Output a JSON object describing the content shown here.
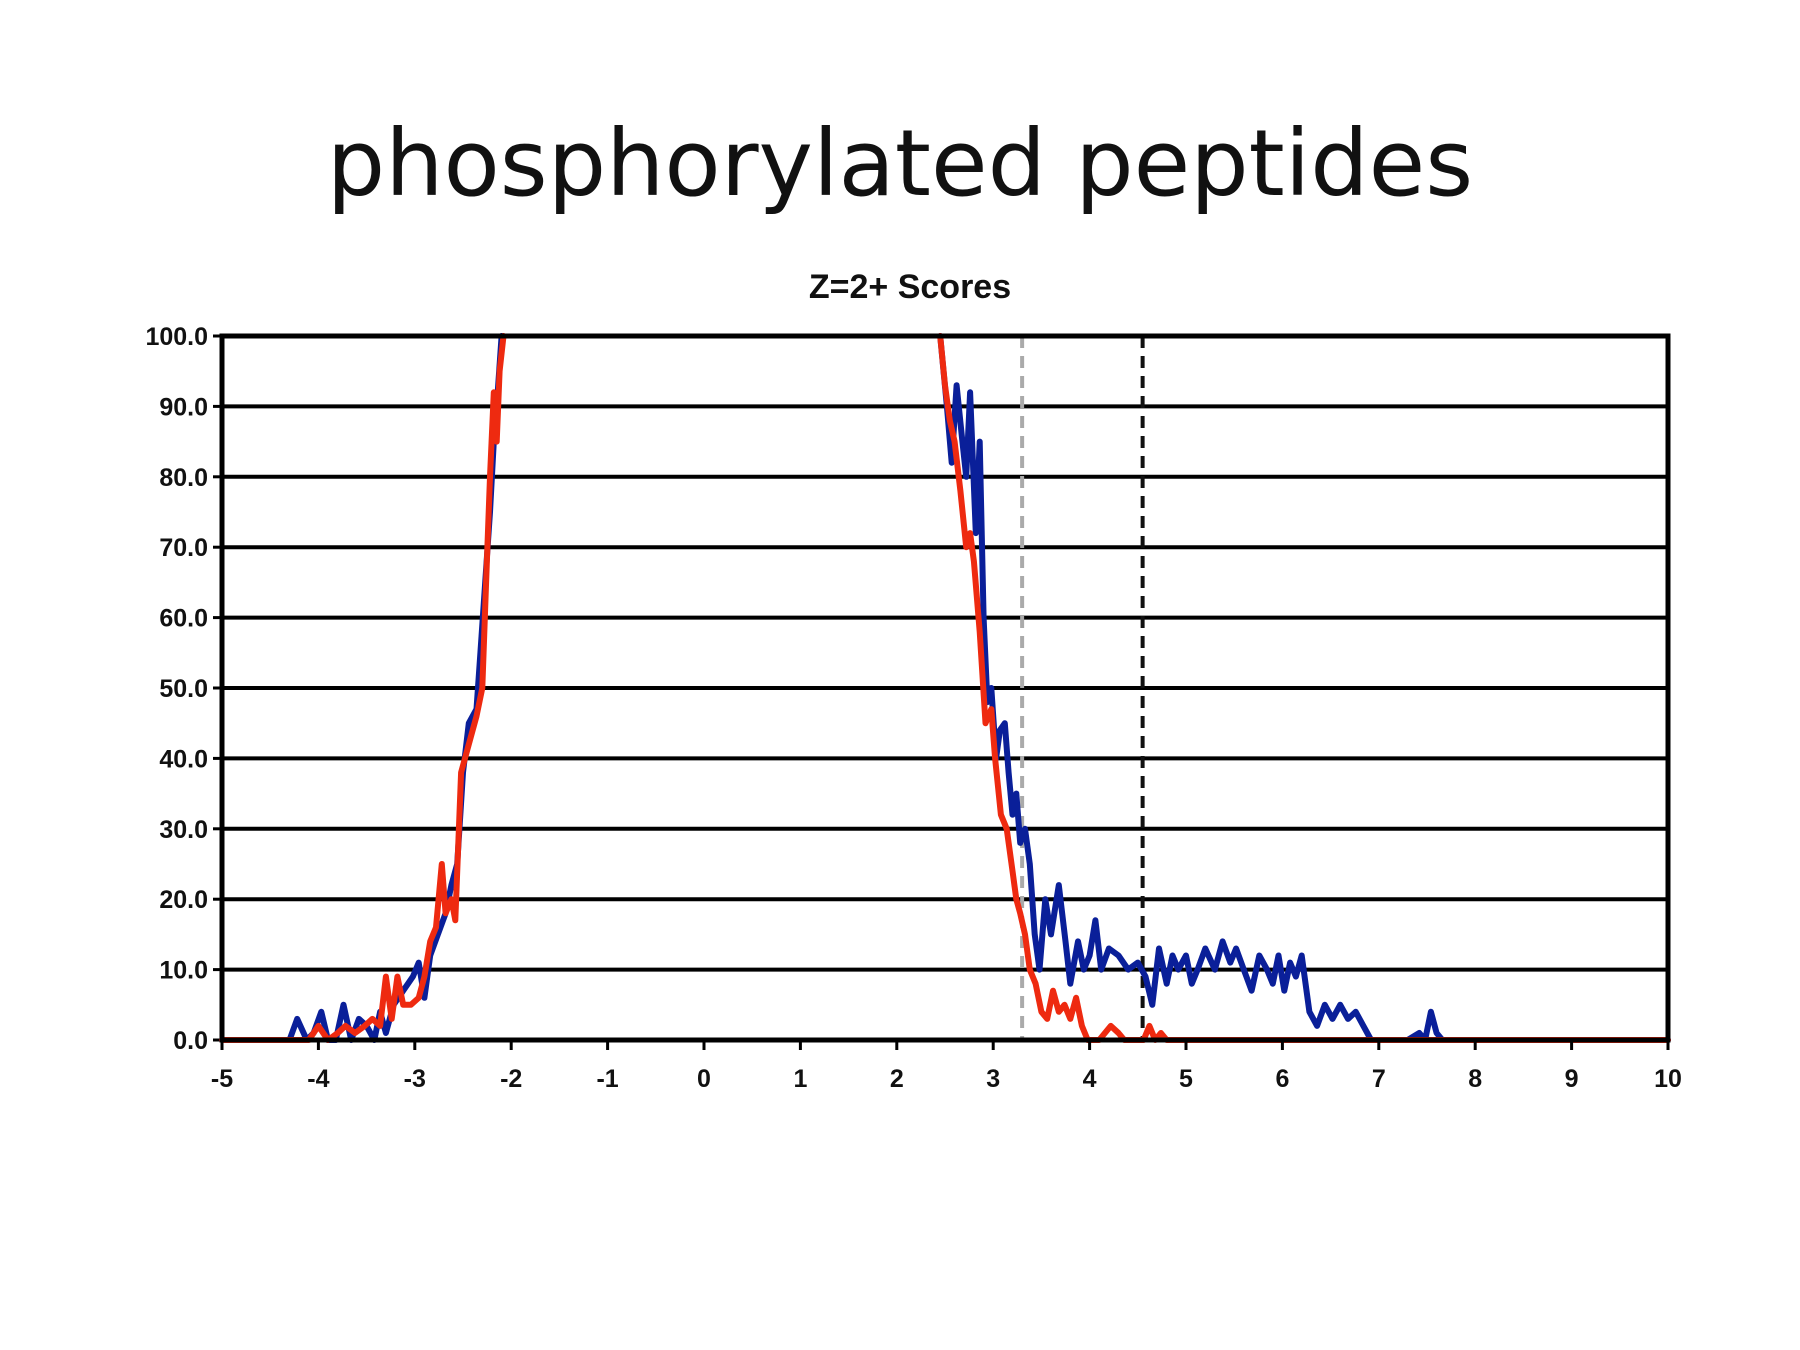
{
  "slide": {
    "title": "phosphorylated peptides"
  },
  "chart_data": {
    "type": "line",
    "title": "Z=2+ Scores",
    "xlabel": "",
    "ylabel": "",
    "xlim": [
      -5,
      10
    ],
    "ylim": [
      0,
      100
    ],
    "grid": true,
    "legend": "none",
    "y_ticks": [
      "0.0",
      "10.0",
      "20.0",
      "30.0",
      "40.0",
      "50.0",
      "60.0",
      "70.0",
      "80.0",
      "90.0",
      "100.0"
    ],
    "x_ticks": [
      "-5",
      "-4",
      "-3",
      "-2",
      "-1",
      "0",
      "1",
      "2",
      "3",
      "4",
      "5",
      "6",
      "7",
      "8",
      "9",
      "10"
    ],
    "reference_lines": [
      {
        "x": 3.3,
        "color": "#aaaaaa",
        "style": "dashed"
      },
      {
        "x": 4.55,
        "color": "#111111",
        "style": "dashed"
      }
    ],
    "series": [
      {
        "color": "#0a1f99",
        "segments": [
          [
            [
              -5,
              0
            ],
            [
              -4.3,
              0
            ],
            [
              -4.22,
              3
            ],
            [
              -4.12,
              0
            ],
            [
              -4.05,
              1
            ],
            [
              -3.97,
              4
            ],
            [
              -3.9,
              0
            ],
            [
              -3.82,
              0
            ],
            [
              -3.74,
              5
            ],
            [
              -3.66,
              0
            ],
            [
              -3.58,
              3
            ],
            [
              -3.5,
              2
            ],
            [
              -3.42,
              0
            ],
            [
              -3.36,
              4
            ],
            [
              -3.3,
              1
            ],
            [
              -3.22,
              5
            ],
            [
              -3.12,
              7
            ],
            [
              -3.02,
              9
            ],
            [
              -2.96,
              11
            ],
            [
              -2.9,
              6
            ],
            [
              -2.84,
              12
            ],
            [
              -2.76,
              15
            ],
            [
              -2.68,
              18
            ],
            [
              -2.62,
              22
            ],
            [
              -2.56,
              25
            ],
            [
              -2.5,
              38
            ],
            [
              -2.44,
              45
            ],
            [
              -2.36,
              47
            ],
            [
              -2.32,
              55
            ],
            [
              -2.27,
              65
            ],
            [
              -2.22,
              75
            ],
            [
              -2.18,
              85
            ],
            [
              -2.14,
              92
            ],
            [
              -2.1,
              100
            ]
          ],
          [
            [
              2.45,
              100
            ],
            [
              2.52,
              90
            ],
            [
              2.57,
              82
            ],
            [
              2.62,
              93
            ],
            [
              2.68,
              85
            ],
            [
              2.72,
              80
            ],
            [
              2.76,
              92
            ],
            [
              2.82,
              72
            ],
            [
              2.86,
              85
            ],
            [
              2.9,
              60
            ],
            [
              2.94,
              48
            ],
            [
              2.98,
              50
            ],
            [
              3.03,
              40
            ],
            [
              3.07,
              44
            ],
            [
              3.12,
              45
            ],
            [
              3.16,
              38
            ],
            [
              3.2,
              32
            ],
            [
              3.24,
              35
            ],
            [
              3.28,
              28
            ],
            [
              3.33,
              30
            ],
            [
              3.38,
              25
            ],
            [
              3.43,
              15
            ],
            [
              3.48,
              10
            ],
            [
              3.54,
              20
            ],
            [
              3.6,
              15
            ],
            [
              3.68,
              22
            ],
            [
              3.75,
              14
            ],
            [
              3.8,
              8
            ],
            [
              3.88,
              14
            ],
            [
              3.94,
              10
            ],
            [
              4.0,
              12
            ],
            [
              4.06,
              17
            ],
            [
              4.12,
              10
            ],
            [
              4.2,
              13
            ],
            [
              4.3,
              12
            ],
            [
              4.4,
              10
            ],
            [
              4.5,
              11
            ],
            [
              4.58,
              9
            ],
            [
              4.65,
              5
            ],
            [
              4.72,
              13
            ],
            [
              4.8,
              8
            ],
            [
              4.86,
              12
            ],
            [
              4.92,
              10
            ],
            [
              5.0,
              12
            ],
            [
              5.06,
              8
            ],
            [
              5.12,
              10
            ],
            [
              5.2,
              13
            ],
            [
              5.3,
              10
            ],
            [
              5.38,
              14
            ],
            [
              5.46,
              11
            ],
            [
              5.52,
              13
            ],
            [
              5.6,
              10
            ],
            [
              5.68,
              7
            ],
            [
              5.76,
              12
            ],
            [
              5.84,
              10
            ],
            [
              5.9,
              8
            ],
            [
              5.96,
              12
            ],
            [
              6.02,
              7
            ],
            [
              6.08,
              11
            ],
            [
              6.14,
              9
            ],
            [
              6.2,
              12
            ],
            [
              6.28,
              4
            ],
            [
              6.36,
              2
            ],
            [
              6.44,
              5
            ],
            [
              6.52,
              3
            ],
            [
              6.6,
              5
            ],
            [
              6.68,
              3
            ],
            [
              6.76,
              4
            ],
            [
              6.84,
              2
            ],
            [
              6.92,
              0
            ],
            [
              7.0,
              0
            ],
            [
              7.3,
              0
            ],
            [
              7.42,
              1
            ],
            [
              7.48,
              0
            ],
            [
              7.54,
              4
            ],
            [
              7.6,
              1
            ],
            [
              7.66,
              0
            ],
            [
              10,
              0
            ]
          ]
        ]
      },
      {
        "color": "#ee2a10",
        "segments": [
          [
            [
              -5,
              0
            ],
            [
              -4.1,
              0
            ],
            [
              -4.0,
              2
            ],
            [
              -3.9,
              0
            ],
            [
              -3.8,
              1
            ],
            [
              -3.72,
              2
            ],
            [
              -3.62,
              1
            ],
            [
              -3.52,
              2
            ],
            [
              -3.44,
              3
            ],
            [
              -3.36,
              2
            ],
            [
              -3.3,
              9
            ],
            [
              -3.24,
              3
            ],
            [
              -3.18,
              9
            ],
            [
              -3.12,
              5
            ],
            [
              -3.04,
              5
            ],
            [
              -2.96,
              6
            ],
            [
              -2.9,
              9
            ],
            [
              -2.84,
              14
            ],
            [
              -2.78,
              16
            ],
            [
              -2.72,
              25
            ],
            [
              -2.68,
              18
            ],
            [
              -2.62,
              20
            ],
            [
              -2.58,
              17
            ],
            [
              -2.52,
              38
            ],
            [
              -2.44,
              42
            ],
            [
              -2.36,
              46
            ],
            [
              -2.3,
              50
            ],
            [
              -2.26,
              65
            ],
            [
              -2.22,
              80
            ],
            [
              -2.18,
              92
            ],
            [
              -2.15,
              85
            ],
            [
              -2.12,
              95
            ],
            [
              -2.08,
              100
            ]
          ],
          [
            [
              2.45,
              100
            ],
            [
              2.5,
              93
            ],
            [
              2.55,
              88
            ],
            [
              2.6,
              85
            ],
            [
              2.66,
              78
            ],
            [
              2.72,
              70
            ],
            [
              2.76,
              72
            ],
            [
              2.8,
              68
            ],
            [
              2.86,
              58
            ],
            [
              2.92,
              45
            ],
            [
              2.98,
              47
            ],
            [
              3.02,
              40
            ],
            [
              3.08,
              32
            ],
            [
              3.14,
              30
            ],
            [
              3.2,
              24
            ],
            [
              3.24,
              20
            ],
            [
              3.28,
              18
            ],
            [
              3.33,
              15
            ],
            [
              3.38,
              10
            ],
            [
              3.44,
              8
            ],
            [
              3.5,
              4
            ],
            [
              3.56,
              3
            ],
            [
              3.62,
              7
            ],
            [
              3.68,
              4
            ],
            [
              3.74,
              5
            ],
            [
              3.8,
              3
            ],
            [
              3.86,
              6
            ],
            [
              3.92,
              2
            ],
            [
              3.98,
              0
            ],
            [
              4.1,
              0
            ],
            [
              4.22,
              2
            ],
            [
              4.3,
              1
            ],
            [
              4.36,
              0
            ],
            [
              4.56,
              0
            ],
            [
              4.62,
              2
            ],
            [
              4.68,
              0
            ],
            [
              4.74,
              1
            ],
            [
              4.8,
              0
            ],
            [
              10,
              0
            ]
          ]
        ]
      }
    ]
  }
}
